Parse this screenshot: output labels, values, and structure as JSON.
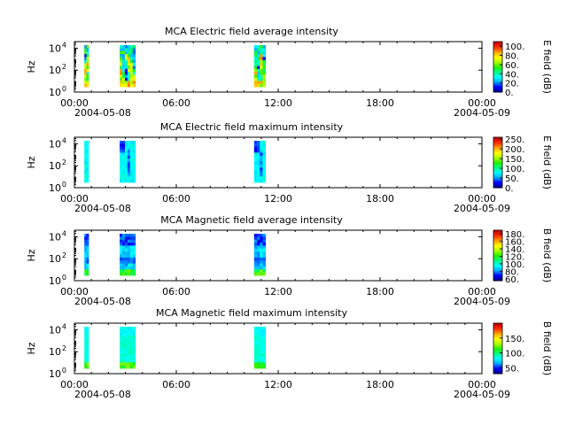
{
  "colorscale": [
    "#00008f",
    "#0000ff",
    "#00aaff",
    "#00ffff",
    "#00ff88",
    "#22ee00",
    "#aaff00",
    "#ffff00",
    "#ffaa00",
    "#ff3300",
    "#cc0000"
  ],
  "x_tick_labels": [
    "00:00",
    "06:00",
    "12:00",
    "18:00",
    "00:00"
  ],
  "x_date_labels": [
    "2004-05-08",
    "2004-05-09"
  ],
  "chart_data": [
    {
      "type": "heatmap",
      "title": "MCA  Electric field average intensity",
      "ylabel": "Hz",
      "y_scale": "log",
      "y_tick_labels": [
        {
          "base": "10",
          "exp": "0"
        },
        {
          "base": "10",
          "exp": "2"
        },
        {
          "base": "10",
          "exp": "4"
        }
      ],
      "xlim": [
        "2004-05-08 00:00",
        "2004-05-09 00:00"
      ],
      "colorbar": {
        "label": "E field (dB)",
        "range": [
          0,
          110
        ],
        "tick_labels": [
          "0.",
          "20.",
          "40.",
          "60.",
          "80.",
          "100."
        ],
        "tick_values": [
          0,
          20,
          40,
          60,
          80,
          100
        ]
      },
      "data_intervals": [
        {
          "start": "00:35",
          "end": "00:50",
          "pattern": "mixed_high"
        },
        {
          "start": "02:40",
          "end": "03:35",
          "pattern": "mixed_high"
        },
        {
          "start": "10:35",
          "end": "11:15",
          "pattern": "mixed_high"
        }
      ]
    },
    {
      "type": "heatmap",
      "title": "MCA  Electric field maximum intensity",
      "ylabel": "Hz",
      "y_scale": "log",
      "y_tick_labels": [
        {
          "base": "10",
          "exp": "0"
        },
        {
          "base": "10",
          "exp": "2"
        },
        {
          "base": "10",
          "exp": "4"
        }
      ],
      "xlim": [
        "2004-05-08 00:00",
        "2004-05-09 00:00"
      ],
      "colorbar": {
        "label": "E field (dB)",
        "range": [
          0,
          260
        ],
        "tick_labels": [
          "0.",
          "50.",
          "100.",
          "150.",
          "200.",
          "250."
        ],
        "tick_values": [
          0,
          50,
          100,
          150,
          200,
          250
        ]
      },
      "data_intervals": [
        {
          "start": "00:35",
          "end": "00:50",
          "pattern": "cyan_mid"
        },
        {
          "start": "02:40",
          "end": "03:35",
          "pattern": "cyan_blue"
        },
        {
          "start": "10:35",
          "end": "11:15",
          "pattern": "cyan_blue"
        }
      ]
    },
    {
      "type": "heatmap",
      "title": "MCA  Magnetic field average intensity",
      "ylabel": "Hz",
      "y_scale": "log",
      "y_tick_labels": [
        {
          "base": "10",
          "exp": "0"
        },
        {
          "base": "10",
          "exp": "2"
        },
        {
          "base": "10",
          "exp": "4"
        }
      ],
      "xlim": [
        "2004-05-08 00:00",
        "2004-05-09 00:00"
      ],
      "colorbar": {
        "label": "B field (dB)",
        "range": [
          55,
          190
        ],
        "tick_labels": [
          "60.",
          "80.",
          "100.",
          "120.",
          "140.",
          "160.",
          "180."
        ],
        "tick_values": [
          60,
          80,
          100,
          120,
          140,
          160,
          180
        ]
      },
      "data_intervals": [
        {
          "start": "00:35",
          "end": "00:50",
          "pattern": "blue_green"
        },
        {
          "start": "02:40",
          "end": "03:35",
          "pattern": "blue_green"
        },
        {
          "start": "10:35",
          "end": "11:15",
          "pattern": "blue_green"
        }
      ]
    },
    {
      "type": "heatmap",
      "title": "MCA  Magnetic field maximum intensity",
      "ylabel": "Hz",
      "y_scale": "log",
      "y_tick_labels": [
        {
          "base": "10",
          "exp": "0"
        },
        {
          "base": "10",
          "exp": "2"
        },
        {
          "base": "10",
          "exp": "4"
        }
      ],
      "xlim": [
        "2004-05-08 00:00",
        "2004-05-09 00:00"
      ],
      "colorbar": {
        "label": "B field (dB)",
        "range": [
          30,
          200
        ],
        "tick_labels": [
          "50.",
          "100.",
          "150."
        ],
        "tick_values": [
          50,
          100,
          150
        ]
      },
      "data_intervals": [
        {
          "start": "00:35",
          "end": "00:50",
          "pattern": "cyan_green"
        },
        {
          "start": "02:40",
          "end": "03:35",
          "pattern": "cyan_green"
        },
        {
          "start": "10:35",
          "end": "11:15",
          "pattern": "cyan_green"
        }
      ]
    }
  ]
}
